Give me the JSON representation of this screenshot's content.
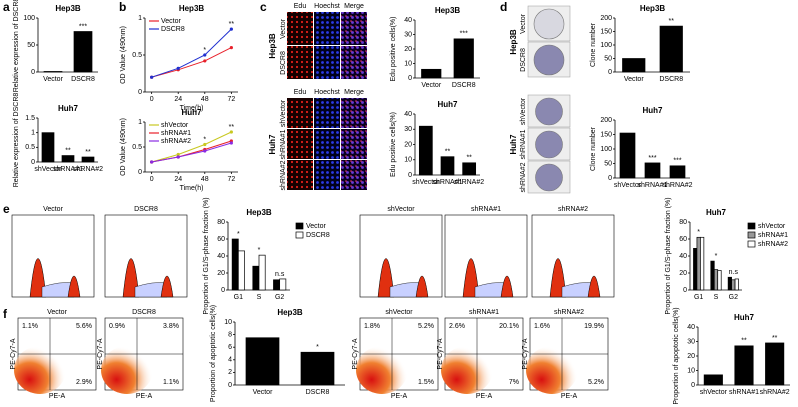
{
  "chart_data": [
    {
      "type": "bar",
      "title": "Hep3B",
      "ylabel": "Relative expression of DSCR8",
      "categories": [
        "Vector",
        "DSCR8"
      ],
      "values": [
        1,
        75
      ],
      "color": "#000000",
      "ylim": [
        0,
        100
      ],
      "yticks": [
        0,
        50,
        100
      ],
      "annotations": [
        null,
        "***"
      ]
    },
    {
      "type": "bar",
      "title": "Huh7",
      "ylabel": "Relative expression of DSCR8",
      "categories": [
        "shVector",
        "shRNA#1",
        "shRNA#2"
      ],
      "values": [
        1,
        0.22,
        0.17
      ],
      "color": "#000000",
      "ylim": [
        0,
        1.5
      ],
      "yticks": [
        0,
        0.5,
        1,
        1.5
      ],
      "annotations": [
        null,
        "**",
        "**"
      ]
    },
    {
      "type": "line",
      "title": "Hep3B",
      "ylabel": "OD Value (490nm)",
      "xlabel": "Time(h)",
      "x": [
        0,
        24,
        48,
        72
      ],
      "xlim": [
        -6,
        78
      ],
      "xticks": [
        0,
        24,
        48,
        72
      ],
      "ylim": [
        0,
        1
      ],
      "yticks": [
        0,
        0.5,
        1
      ],
      "legend": "upper left",
      "series": [
        {
          "name": "Vector",
          "color": "#e8202a",
          "values": [
            0.2,
            0.3,
            0.42,
            0.6
          ]
        },
        {
          "name": "DSCR8",
          "color": "#1f2fd0",
          "values": [
            0.2,
            0.32,
            0.5,
            0.85
          ]
        }
      ],
      "annotations": [
        null,
        null,
        "*",
        "**"
      ]
    },
    {
      "type": "line",
      "title": "Huh7",
      "ylabel": "OD Value (490nm)",
      "xlabel": "Time(h)",
      "x": [
        0,
        24,
        48,
        72
      ],
      "xlim": [
        -6,
        78
      ],
      "xticks": [
        0,
        24,
        48,
        72
      ],
      "ylim": [
        0,
        1
      ],
      "yticks": [
        0,
        0.5,
        1
      ],
      "legend": "upper left",
      "series": [
        {
          "name": "shVector",
          "color": "#c8c820",
          "values": [
            0.2,
            0.35,
            0.55,
            0.8
          ]
        },
        {
          "name": "shRNA#1",
          "color": "#e8202a",
          "values": [
            0.2,
            0.3,
            0.45,
            0.62
          ]
        },
        {
          "name": "shRNA#2",
          "color": "#8a2be2",
          "values": [
            0.2,
            0.3,
            0.42,
            0.58
          ]
        }
      ],
      "annotations": [
        null,
        null,
        "*",
        "**"
      ]
    },
    {
      "type": "bar",
      "title": "Hep3B",
      "ylabel": "Edu positive cells(%)",
      "categories": [
        "Vector",
        "DSCR8"
      ],
      "values": [
        6,
        27
      ],
      "color": "#000000",
      "ylim": [
        0,
        40
      ],
      "yticks": [
        0,
        10,
        20,
        30,
        40
      ],
      "annotations": [
        null,
        "***"
      ]
    },
    {
      "type": "bar",
      "title": "Huh7",
      "ylabel": "Edu positive cells(%)",
      "categories": [
        "shVector",
        "shRNA#1",
        "shRNA#2"
      ],
      "values": [
        32,
        12,
        8
      ],
      "color": "#000000",
      "ylim": [
        0,
        40
      ],
      "yticks": [
        0,
        10,
        20,
        30,
        40
      ],
      "annotations": [
        null,
        "**",
        "**"
      ]
    },
    {
      "type": "bar",
      "title": "Hep3B",
      "ylabel": "Clone number",
      "categories": [
        "Vector",
        "DSCR8"
      ],
      "values": [
        50,
        170
      ],
      "color": "#000000",
      "ylim": [
        0,
        200
      ],
      "yticks": [
        0,
        50,
        100,
        150,
        200
      ],
      "annotations": [
        null,
        "**"
      ]
    },
    {
      "type": "bar",
      "title": "Huh7",
      "ylabel": "Clone number",
      "categories": [
        "shVector",
        "shRNA#1",
        "shRNA#2"
      ],
      "values": [
        155,
        52,
        42
      ],
      "color": "#000000",
      "ylim": [
        0,
        200
      ],
      "yticks": [
        0,
        50,
        100,
        150,
        200
      ],
      "annotations": [
        null,
        "***",
        "***"
      ]
    },
    {
      "type": "bar",
      "title": "Hep3B",
      "ylabel": "Proportion of G1/S-phase fraction (%)",
      "categories": [
        "G1",
        "S",
        "G2"
      ],
      "series": [
        {
          "name": "Vector",
          "color": "#000000",
          "values": [
            60,
            28,
            12
          ]
        },
        {
          "name": "DSCR8",
          "color": "#ffffff",
          "values": [
            46,
            41,
            13
          ]
        }
      ],
      "ylim": [
        0,
        80
      ],
      "yticks": [
        0,
        20,
        40,
        60,
        80
      ],
      "legend": "right",
      "annotations": [
        "*",
        "*",
        "n.s"
      ]
    },
    {
      "type": "bar",
      "title": "Huh7",
      "ylabel": "Proportion of G1/S-phase fraction (%)",
      "categories": [
        "G1",
        "S",
        "G2"
      ],
      "series": [
        {
          "name": "shVector",
          "color": "#000000",
          "values": [
            49,
            34,
            15
          ]
        },
        {
          "name": "shRNA#1",
          "color": "#999999",
          "values": [
            62,
            24,
            12
          ]
        },
        {
          "name": "shRNA#2",
          "color": "#ffffff",
          "values": [
            62,
            23,
            13
          ]
        }
      ],
      "ylim": [
        0,
        80
      ],
      "yticks": [
        0,
        20,
        40,
        60,
        80
      ],
      "legend": "right",
      "annotations": [
        "*",
        "*",
        "n.s"
      ]
    },
    {
      "type": "bar",
      "title": "Hep3B",
      "ylabel": "Proportion of apoptotic cells(%)",
      "categories": [
        "Vector",
        "DSCR8"
      ],
      "values": [
        7.5,
        5.2
      ],
      "color": "#000000",
      "ylim": [
        0,
        10
      ],
      "yticks": [
        0,
        2,
        4,
        6,
        8,
        10
      ],
      "annotations": [
        null,
        "*"
      ]
    },
    {
      "type": "bar",
      "title": "Huh7",
      "ylabel": "Proportion of apoptotic cells(%)",
      "categories": [
        "shVector",
        "shRNA#1",
        "shRNA#2"
      ],
      "values": [
        7,
        27,
        29
      ],
      "color": "#000000",
      "ylim": [
        0,
        40
      ],
      "yticks": [
        0,
        10,
        20,
        30,
        40
      ],
      "annotations": [
        null,
        "**",
        "**"
      ]
    }
  ],
  "panel_labels": [
    "a",
    "b",
    "c",
    "d",
    "e",
    "f"
  ],
  "edu_panel": {
    "groups": [
      {
        "cell_line": "Hep3B",
        "columns": [
          "Edu",
          "Hoechst",
          "Merge"
        ],
        "rows": [
          "Vector",
          "DSCR8"
        ]
      },
      {
        "cell_line": "Huh7",
        "columns": [
          "Edu",
          "Hoechst",
          "Merge"
        ],
        "rows": [
          "shVector",
          "shRNA#1",
          "shRNA#2"
        ]
      }
    ]
  },
  "colony_panel": {
    "groups": [
      {
        "cell_line": "Hep3B",
        "rows": [
          "Vector",
          "DSCR8"
        ]
      },
      {
        "cell_line": "Huh7",
        "rows": [
          "shVector",
          "shRNA#1",
          "shRNA#2"
        ]
      }
    ]
  },
  "cell_cycle_panel": {
    "plots": [
      "Vector",
      "DSCR8",
      "shVector",
      "shRNA#1",
      "shRNA#2"
    ]
  },
  "apoptosis_panel": {
    "x_label": "PE-A",
    "y_label": "PE-Cy7-A",
    "plots": [
      {
        "title": "Vector",
        "quadrants": [
          "1.1%",
          "5.6%",
          "2.9%"
        ]
      },
      {
        "title": "DSCR8",
        "quadrants": [
          "0.9%",
          "3.8%",
          "1.1%"
        ]
      },
      {
        "title": "shVector",
        "quadrants": [
          "1.8%",
          "5.2%",
          "1.5%"
        ]
      },
      {
        "title": "shRNA#1",
        "quadrants": [
          "2.6%",
          "20.1%",
          "7%"
        ]
      },
      {
        "title": "shRNA#2",
        "quadrants": [
          "1.6%",
          "19.9%",
          "5.2%"
        ]
      }
    ]
  }
}
